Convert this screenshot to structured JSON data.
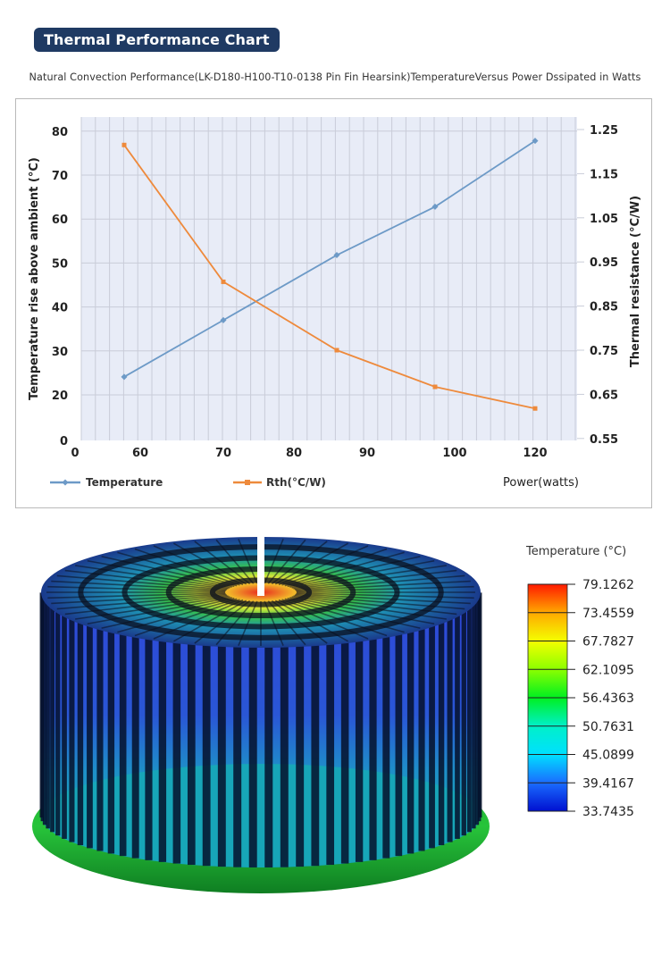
{
  "header": {
    "badge": "Thermal Performance Chart",
    "subtitle": "Natural Convection Performance(LK-D180-H100-T10-0138 Pin Fin  Hearsink)TemperatureVersus Power Dssipated in Watts"
  },
  "colors": {
    "badge_bg": "#1f3a63",
    "temperature_series": "#6d9ac7",
    "rth_series": "#ee8a3c",
    "plot_bg": "#e8ecf7",
    "grid": "#c9ccd8"
  },
  "chart_data": {
    "type": "line",
    "title": "Natural Convection Performance(LK-D180-H100-T10-0138 Pin Fin  Hearsink)TemperatureVersus Power Dssipated in Watts",
    "xlabel": "Power(watts)",
    "ylabel": "Temperature rise above ambient (°C)",
    "y2label": "Thermal resistance (°C/W)",
    "x_tick_labels": [
      "0",
      "60",
      "70",
      "80",
      "90",
      "100",
      "120"
    ],
    "y_ticks": [
      0,
      20,
      30,
      40,
      50,
      60,
      70,
      80
    ],
    "y2_ticks": [
      "0.55",
      "0.65",
      "0.75",
      "0.85",
      "0.95",
      "1.05",
      "1.15",
      "1.25"
    ],
    "ylim": [
      0,
      80
    ],
    "y2lim": [
      0.55,
      1.25
    ],
    "grid": true,
    "legend_position": "bottom",
    "x": [
      58,
      70,
      86,
      98,
      120
    ],
    "series": [
      {
        "name": "Temperature",
        "axis": "left",
        "marker": "diamond",
        "values": [
          24.1,
          37.0,
          51.8,
          62.8,
          77.8
        ]
      },
      {
        "name": "Rth(°C/W)",
        "axis": "right",
        "marker": "square",
        "values": [
          1.215,
          0.905,
          0.75,
          0.667,
          0.618
        ]
      }
    ]
  },
  "colorbar": {
    "title": "Temperature (°C)",
    "labels": [
      "79.1262",
      "73.4559",
      "67.7827",
      "62.1095",
      "56.4363",
      "50.7631",
      "45.0899",
      "39.4167",
      "33.7435"
    ],
    "max": 79.1262,
    "min": 33.7435
  },
  "image": {
    "description": "Pin fin heatsink thermal simulation render"
  }
}
